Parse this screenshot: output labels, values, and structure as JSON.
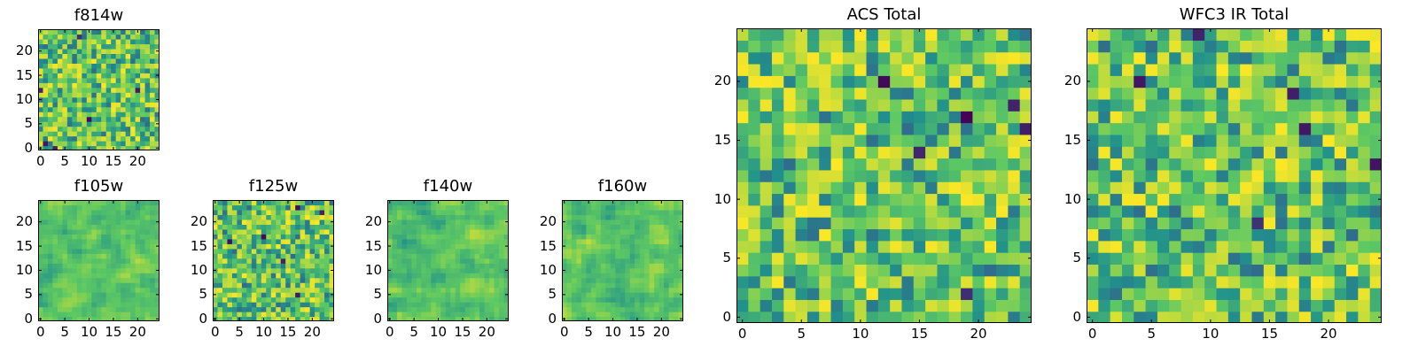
{
  "colormap": [
    "#440154",
    "#3b528b",
    "#21918c",
    "#5ec962",
    "#fde725"
  ],
  "chart_data": [
    {
      "type": "heatmap",
      "title": "f814w",
      "xticks": [
        0,
        5,
        10,
        15,
        20
      ],
      "yticks": [
        0,
        5,
        10,
        15,
        20
      ],
      "grid_size": 25,
      "seed": 814,
      "smooth": 0,
      "cell_values": "pseudo-random estimate of noise field (0-1)"
    },
    {
      "type": "heatmap",
      "title": "f105w",
      "xticks": [
        0,
        5,
        10,
        15,
        20
      ],
      "yticks": [
        0,
        5,
        10,
        15,
        20
      ],
      "grid_size": 25,
      "seed": 105,
      "smooth": 1
    },
    {
      "type": "heatmap",
      "title": "f125w",
      "xticks": [
        0,
        5,
        10,
        15,
        20
      ],
      "yticks": [
        0,
        5,
        10,
        15,
        20
      ],
      "grid_size": 25,
      "seed": 125,
      "smooth": 0
    },
    {
      "type": "heatmap",
      "title": "f140w",
      "xticks": [
        0,
        5,
        10,
        15,
        20
      ],
      "yticks": [
        0,
        5,
        10,
        15,
        20
      ],
      "grid_size": 25,
      "seed": 140,
      "smooth": 1
    },
    {
      "type": "heatmap",
      "title": "f160w",
      "xticks": [
        0,
        5,
        10,
        15,
        20
      ],
      "yticks": [
        0,
        5,
        10,
        15,
        20
      ],
      "grid_size": 25,
      "seed": 160,
      "smooth": 1
    },
    {
      "type": "heatmap",
      "title": "ACS Total",
      "xticks": [
        0,
        5,
        10,
        15,
        20
      ],
      "yticks": [
        0,
        5,
        10,
        15,
        20
      ],
      "grid_size": 25,
      "seed": 11,
      "smooth": 0
    },
    {
      "type": "heatmap",
      "title": "WFC3 IR Total",
      "xticks": [
        0,
        5,
        10,
        15,
        20
      ],
      "yticks": [
        0,
        5,
        10,
        15,
        20
      ],
      "grid_size": 25,
      "seed": 22,
      "smooth": 0
    }
  ]
}
